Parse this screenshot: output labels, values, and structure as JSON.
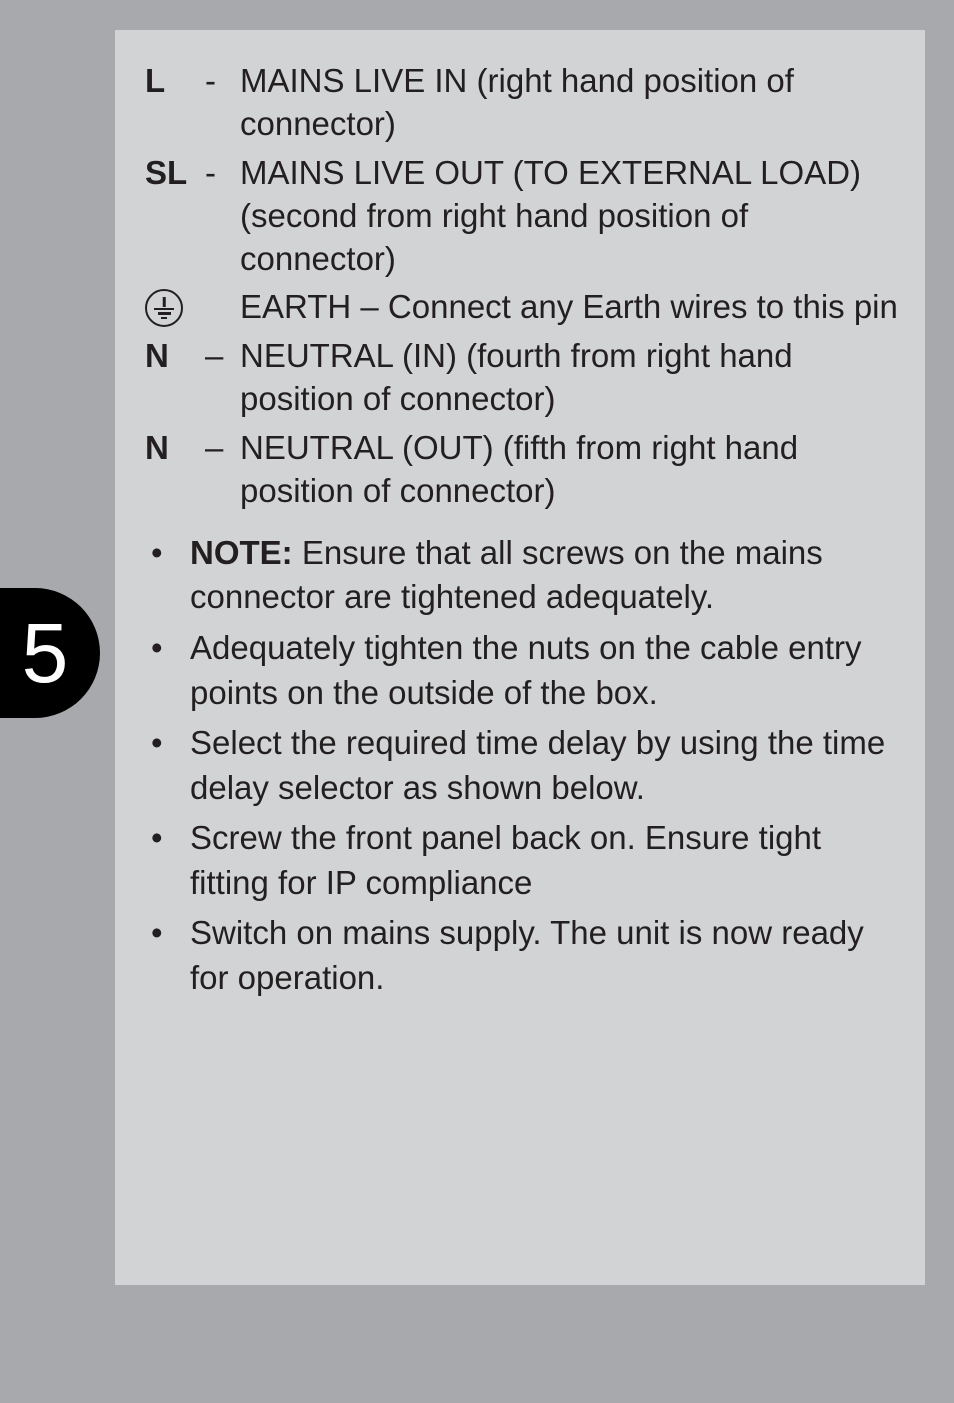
{
  "page": {
    "number": "5",
    "background_color": "#a7a9ac",
    "panel_color": "#d1d3d4",
    "tab_color": "#000000",
    "text_color": "#231f20",
    "body_fontsize": 33
  },
  "definitions": [
    {
      "label": "L",
      "sep": "-",
      "text": "MAINS LIVE IN (right hand  position of connector)",
      "icon": false
    },
    {
      "label": "SL",
      "sep": "-",
      "text": "MAINS LIVE OUT (TO EXTERNAL LOAD) (second from right hand  position of connector)",
      "icon": false
    },
    {
      "label": "",
      "sep": "",
      "text": "EARTH – Connect any Earth wires to this pin",
      "icon": true
    },
    {
      "label": "N",
      "sep": "–",
      "text": "NEUTRAL (IN) (fourth from right hand  position of connector)",
      "icon": false
    },
    {
      "label": "N",
      "sep": "–",
      "text": "NEUTRAL (OUT) (fifth from right hand  position of connector)",
      "icon": false
    }
  ],
  "bullets": [
    {
      "prefix": "NOTE:",
      "text": " Ensure that all screws on the mains connector are tightened adequately."
    },
    {
      "prefix": "",
      "text": "Adequately tighten the nuts on the cable entry points on the outside of the box."
    },
    {
      "prefix": "",
      "text": "Select the required time delay by using the time delay selector as shown below."
    },
    {
      "prefix": "",
      "text": "Screw the front panel back on. Ensure tight fitting for IP compliance"
    },
    {
      "prefix": "",
      "text": "Switch on mains supply. The unit is now ready for operation."
    }
  ]
}
